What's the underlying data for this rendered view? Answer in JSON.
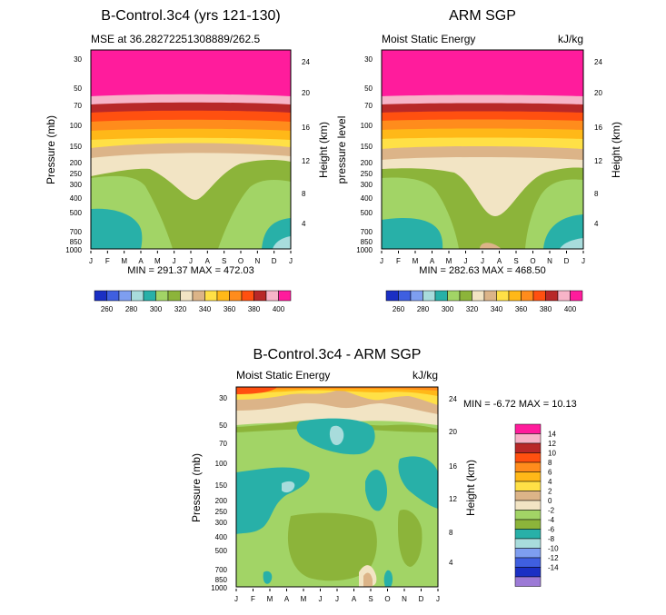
{
  "palette": [
    "#9c7ad6",
    "#1a2fc4",
    "#3f5fe0",
    "#7e9ef0",
    "#a8dcdc",
    "#28b0a8",
    "#a2d466",
    "#8cb43a",
    "#f2e4c4",
    "#dcb488",
    "#ffe046",
    "#ffb818",
    "#ff8c1c",
    "#ff5010",
    "#b82828",
    "#f7b4c8",
    "#ff1c9c"
  ],
  "chart_data": [
    {
      "id": "p1",
      "type": "heatmap",
      "title": "B-Control.3c4 (yrs 121-130)",
      "subtitle_left": "MSE at 36.28272251308889/262.5",
      "subtitle_right": "",
      "ylabel": "Pressure (mb)",
      "ylabel_right": "Height (km)",
      "minmax": "MIN = 291.37 MAX = 472.03",
      "x_ticks": [
        "J",
        "F",
        "M",
        "A",
        "M",
        "J",
        "J",
        "A",
        "S",
        "O",
        "N",
        "D",
        "J"
      ],
      "p_ticks": [
        "30",
        "50",
        "70",
        "100",
        "150",
        "200",
        "250",
        "300",
        "400",
        "500",
        "700",
        "850",
        "1000"
      ],
      "h_ticks": [
        "24",
        "20",
        "16",
        "12",
        "8",
        "4"
      ],
      "colorbar_labels": [
        "260",
        "280",
        "300",
        "320",
        "340",
        "360",
        "380",
        "400"
      ]
    },
    {
      "id": "p2",
      "type": "heatmap",
      "title": "ARM SGP",
      "subtitle_left": "Moist Static Energy",
      "subtitle_right": "kJ/kg",
      "ylabel": "pressure level",
      "ylabel_right": "Height (km)",
      "minmax": "MIN = 282.63 MAX = 468.50",
      "x_ticks": [
        "J",
        "F",
        "M",
        "A",
        "M",
        "J",
        "J",
        "A",
        "S",
        "O",
        "N",
        "D",
        "J"
      ],
      "p_ticks": [
        "30",
        "50",
        "70",
        "100",
        "150",
        "200",
        "250",
        "300",
        "400",
        "500",
        "700",
        "850",
        "1000"
      ],
      "h_ticks": [
        "24",
        "20",
        "16",
        "12",
        "8",
        "4"
      ],
      "colorbar_labels": [
        "260",
        "280",
        "300",
        "320",
        "340",
        "360",
        "380",
        "400"
      ]
    },
    {
      "id": "p3",
      "type": "heatmap",
      "title": "B-Control.3c4 - ARM SGP",
      "subtitle_left": "Moist Static Energy",
      "subtitle_right": "kJ/kg",
      "ylabel": "Pressure (mb)",
      "ylabel_right": "Height (km)",
      "minmax": "MIN =   -6.72 MAX =   10.13",
      "x_ticks": [
        "J",
        "F",
        "M",
        "A",
        "M",
        "J",
        "J",
        "A",
        "S",
        "O",
        "N",
        "D",
        "J"
      ],
      "p_ticks": [
        "30",
        "50",
        "70",
        "100",
        "150",
        "200",
        "250",
        "300",
        "400",
        "500",
        "700",
        "850",
        "1000"
      ],
      "h_ticks": [
        "24",
        "20",
        "16",
        "12",
        "8",
        "4"
      ],
      "legend_labels": [
        "14",
        "12",
        "10",
        "8",
        "6",
        "4",
        "2",
        "0",
        "-2",
        "-4",
        "-6",
        "-8",
        "-10",
        "-12",
        "-14"
      ]
    }
  ]
}
